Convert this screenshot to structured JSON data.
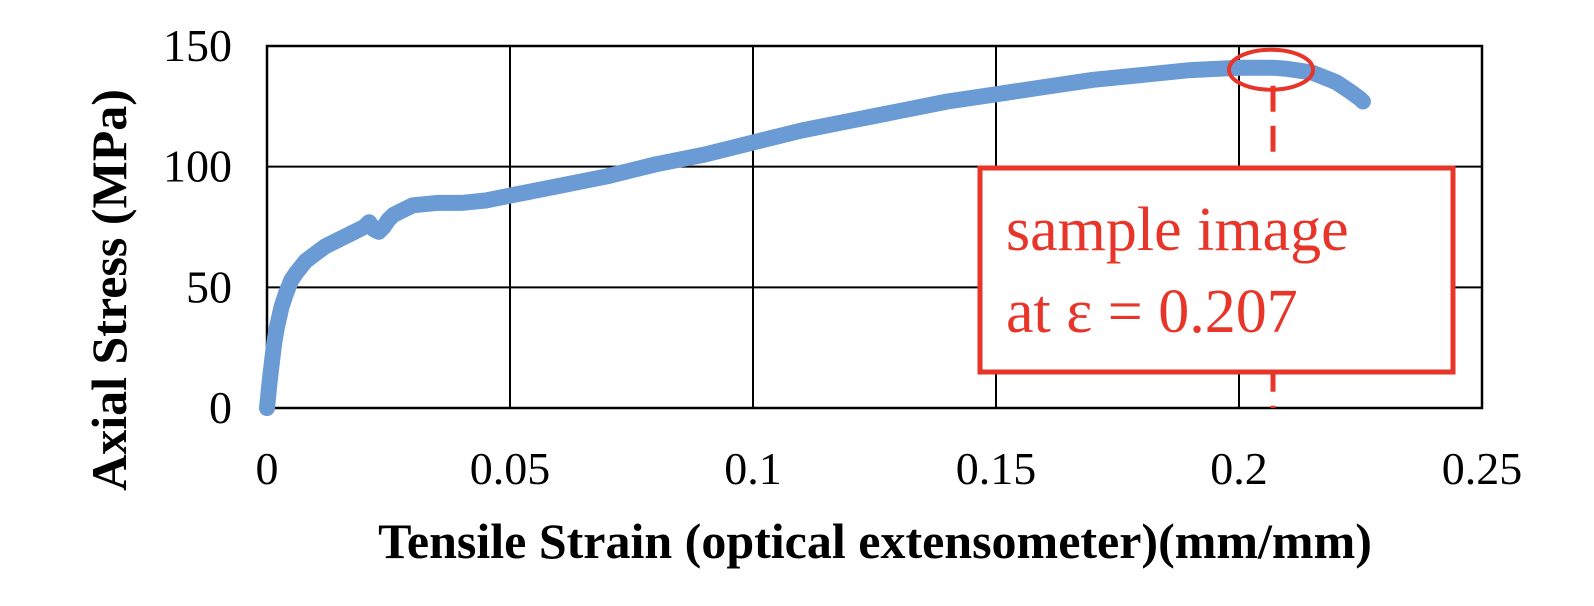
{
  "chart_data": {
    "type": "line",
    "title": "",
    "xlabel": "Tensile Strain (optical extensometer)(mm/mm)",
    "ylabel": "Axial Stress (MPa)",
    "xlim": [
      0,
      0.25
    ],
    "ylim": [
      0,
      150
    ],
    "x_ticks": [
      0,
      0.05,
      0.1,
      0.15,
      0.2,
      0.25
    ],
    "x_tick_labels": [
      "0",
      "0.05",
      "0.1",
      "0.15",
      "0.2",
      "0.25"
    ],
    "y_ticks": [
      0,
      50,
      100,
      150
    ],
    "y_tick_labels": [
      "0",
      "50",
      "100",
      "150"
    ],
    "grid": true,
    "legend": "none",
    "series": [
      {
        "color": "#6a9bd4",
        "x": [
          0.0,
          0.0005,
          0.001,
          0.0015,
          0.002,
          0.003,
          0.004,
          0.005,
          0.006,
          0.008,
          0.01,
          0.012,
          0.015,
          0.018,
          0.02,
          0.021,
          0.022,
          0.023,
          0.024,
          0.025,
          0.026,
          0.028,
          0.03,
          0.035,
          0.04,
          0.045,
          0.05,
          0.06,
          0.07,
          0.08,
          0.09,
          0.1,
          0.11,
          0.12,
          0.13,
          0.14,
          0.15,
          0.16,
          0.17,
          0.18,
          0.19,
          0.2,
          0.207,
          0.21,
          0.215,
          0.22,
          0.223,
          0.225,
          0.2255
        ],
        "y": [
          0,
          10,
          19,
          27,
          33,
          42,
          48,
          53,
          56,
          61,
          64,
          67,
          70,
          73,
          75,
          77,
          74,
          73,
          75,
          78,
          80,
          82,
          84,
          85,
          85,
          86,
          88,
          92,
          96,
          101,
          105,
          110,
          115,
          119,
          123,
          127,
          130,
          133,
          136,
          138,
          140,
          141,
          141,
          140.5,
          139,
          135,
          131,
          128,
          127
        ]
      }
    ],
    "annotations": [
      {
        "type": "text-box",
        "lines": [
          "sample image",
          "at ε = 0.207"
        ],
        "color": "#e8352a"
      },
      {
        "type": "ellipse-marker",
        "x": 0.207,
        "y": 141,
        "color": "#e8352a"
      },
      {
        "type": "dashed-vline",
        "x": 0.207,
        "color": "#e8352a"
      }
    ]
  }
}
